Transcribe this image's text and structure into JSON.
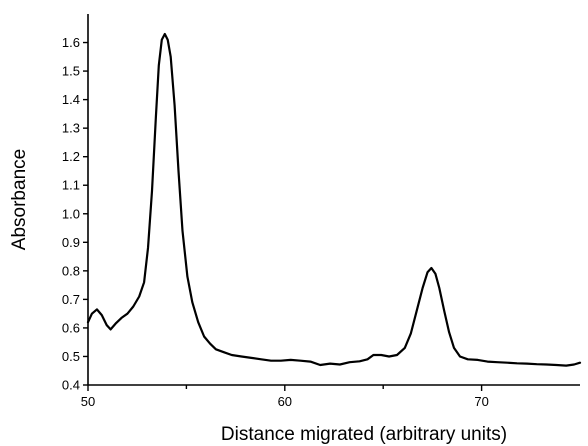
{
  "chart_data": {
    "type": "line",
    "title": "",
    "xlabel": "Distance migrated (arbitrary units)",
    "ylabel": "Absorbance",
    "xlim": [
      50,
      75
    ],
    "ylim": [
      0.4,
      1.7
    ],
    "grid": false,
    "x_ticks": [
      50,
      60,
      70
    ],
    "x_minor_ticks": [
      55,
      65
    ],
    "x_tick_labels": [
      "50",
      "60",
      "70"
    ],
    "y_ticks": [
      0.4,
      0.5,
      0.6,
      0.7,
      0.8,
      0.9,
      1.0,
      1.1,
      1.2,
      1.3,
      1.4,
      1.5,
      1.6
    ],
    "y_tick_labels": [
      "0.4",
      "0.5",
      "0.6",
      "0.7",
      "0.8",
      "0.9",
      "1.0",
      "1.1",
      "1.2",
      "1.3",
      "1.4",
      "1.5",
      "1.6"
    ],
    "series": [
      {
        "color": "#000000",
        "points": [
          [
            50.0,
            0.62
          ],
          [
            50.2,
            0.65
          ],
          [
            50.45,
            0.665
          ],
          [
            50.7,
            0.645
          ],
          [
            50.95,
            0.61
          ],
          [
            51.15,
            0.595
          ],
          [
            51.4,
            0.615
          ],
          [
            51.7,
            0.635
          ],
          [
            52.0,
            0.65
          ],
          [
            52.3,
            0.675
          ],
          [
            52.6,
            0.71
          ],
          [
            52.85,
            0.76
          ],
          [
            53.05,
            0.88
          ],
          [
            53.25,
            1.08
          ],
          [
            53.45,
            1.34
          ],
          [
            53.6,
            1.52
          ],
          [
            53.75,
            1.61
          ],
          [
            53.9,
            1.63
          ],
          [
            54.05,
            1.61
          ],
          [
            54.2,
            1.55
          ],
          [
            54.4,
            1.38
          ],
          [
            54.6,
            1.15
          ],
          [
            54.8,
            0.94
          ],
          [
            55.05,
            0.78
          ],
          [
            55.3,
            0.69
          ],
          [
            55.6,
            0.62
          ],
          [
            55.9,
            0.57
          ],
          [
            56.2,
            0.545
          ],
          [
            56.5,
            0.525
          ],
          [
            56.9,
            0.515
          ],
          [
            57.3,
            0.505
          ],
          [
            57.8,
            0.5
          ],
          [
            58.3,
            0.495
          ],
          [
            58.8,
            0.49
          ],
          [
            59.3,
            0.485
          ],
          [
            59.8,
            0.485
          ],
          [
            60.3,
            0.488
          ],
          [
            60.8,
            0.485
          ],
          [
            61.3,
            0.482
          ],
          [
            61.8,
            0.47
          ],
          [
            62.3,
            0.475
          ],
          [
            62.8,
            0.472
          ],
          [
            63.3,
            0.48
          ],
          [
            63.8,
            0.483
          ],
          [
            64.2,
            0.49
          ],
          [
            64.5,
            0.505
          ],
          [
            64.9,
            0.505
          ],
          [
            65.3,
            0.5
          ],
          [
            65.7,
            0.505
          ],
          [
            66.1,
            0.53
          ],
          [
            66.4,
            0.58
          ],
          [
            66.7,
            0.66
          ],
          [
            67.0,
            0.74
          ],
          [
            67.25,
            0.795
          ],
          [
            67.45,
            0.81
          ],
          [
            67.65,
            0.79
          ],
          [
            67.85,
            0.74
          ],
          [
            68.1,
            0.66
          ],
          [
            68.35,
            0.585
          ],
          [
            68.6,
            0.53
          ],
          [
            68.9,
            0.5
          ],
          [
            69.3,
            0.49
          ],
          [
            69.8,
            0.488
          ],
          [
            70.3,
            0.482
          ],
          [
            70.8,
            0.48
          ],
          [
            71.3,
            0.478
          ],
          [
            71.8,
            0.476
          ],
          [
            72.3,
            0.475
          ],
          [
            72.8,
            0.473
          ],
          [
            73.3,
            0.472
          ],
          [
            73.8,
            0.47
          ],
          [
            74.3,
            0.468
          ],
          [
            74.7,
            0.472
          ],
          [
            75.0,
            0.478
          ]
        ]
      }
    ]
  }
}
